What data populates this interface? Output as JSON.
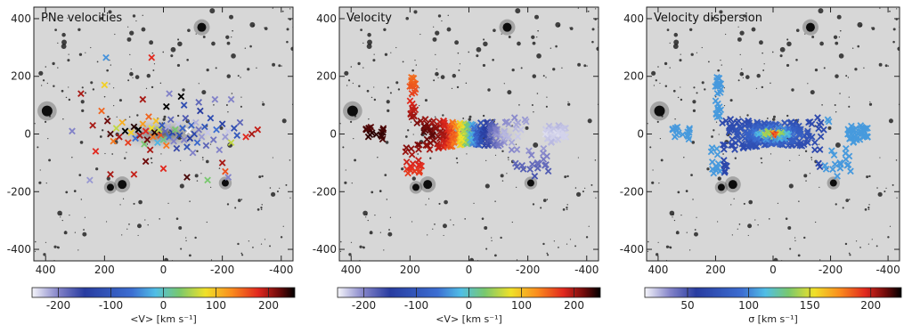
{
  "chart_data": [
    {
      "type": "scatter",
      "title": "PNe velocities",
      "xlim": [
        440,
        -440
      ],
      "ylim": [
        -440,
        440
      ],
      "xticks": [
        400,
        200,
        0,
        -200,
        -400
      ],
      "yticks": [
        400,
        200,
        0,
        -200,
        -400
      ],
      "colorbar": {
        "label": "<V> [km s⁻¹]",
        "range": [
          -250,
          250
        ],
        "ticks": [
          -200,
          -100,
          0,
          100,
          200
        ],
        "cmap": "velocity"
      },
      "points": [
        {
          "x": 310,
          "y": 10,
          "c": -200
        },
        {
          "x": 280,
          "y": 140,
          "c": 200
        },
        {
          "x": 240,
          "y": 30,
          "c": 200
        },
        {
          "x": 230,
          "y": -60,
          "c": 180
        },
        {
          "x": 250,
          "y": -160,
          "c": -210
        },
        {
          "x": 210,
          "y": 80,
          "c": 150
        },
        {
          "x": 200,
          "y": 170,
          "c": 90
        },
        {
          "x": 195,
          "y": 265,
          "c": -40
        },
        {
          "x": 190,
          "y": 45,
          "c": 220
        },
        {
          "x": 180,
          "y": 0,
          "c": 230
        },
        {
          "x": 170,
          "y": -25,
          "c": 140
        },
        {
          "x": 160,
          "y": 20,
          "c": 60
        },
        {
          "x": 150,
          "y": -10,
          "c": 200
        },
        {
          "x": 140,
          "y": 40,
          "c": 110
        },
        {
          "x": 130,
          "y": 10,
          "c": 250
        },
        {
          "x": 120,
          "y": -30,
          "c": 170
        },
        {
          "x": 110,
          "y": 5,
          "c": 90
        },
        {
          "x": 100,
          "y": 25,
          "c": 240
        },
        {
          "x": 95,
          "y": -15,
          "c": -60
        },
        {
          "x": 85,
          "y": 15,
          "c": 260
        },
        {
          "x": 80,
          "y": -5,
          "c": 200
        },
        {
          "x": 70,
          "y": 35,
          "c": 120
        },
        {
          "x": 65,
          "y": -35,
          "c": 30
        },
        {
          "x": 60,
          "y": 10,
          "c": 180
        },
        {
          "x": 55,
          "y": -20,
          "c": 220
        },
        {
          "x": 50,
          "y": 60,
          "c": 150
        },
        {
          "x": 45,
          "y": -55,
          "c": 200
        },
        {
          "x": 40,
          "y": 20,
          "c": 80
        },
        {
          "x": 35,
          "y": -10,
          "c": 140
        },
        {
          "x": 30,
          "y": 5,
          "c": 240
        },
        {
          "x": 25,
          "y": 45,
          "c": 100
        },
        {
          "x": 20,
          "y": -30,
          "c": -20
        },
        {
          "x": 15,
          "y": 15,
          "c": 60
        },
        {
          "x": 10,
          "y": -5,
          "c": 160
        },
        {
          "x": 5,
          "y": 30,
          "c": -100
        },
        {
          "x": 0,
          "y": -20,
          "c": 20
        },
        {
          "x": 40,
          "y": 265,
          "c": 180
        },
        {
          "x": -5,
          "y": 10,
          "c": -180
        },
        {
          "x": -10,
          "y": -40,
          "c": 140
        },
        {
          "x": -15,
          "y": 25,
          "c": -220
        },
        {
          "x": -20,
          "y": -10,
          "c": -60
        },
        {
          "x": -25,
          "y": 50,
          "c": -180
        },
        {
          "x": -30,
          "y": 5,
          "c": -140
        },
        {
          "x": -35,
          "y": -25,
          "c": -200
        },
        {
          "x": -40,
          "y": 15,
          "c": 30
        },
        {
          "x": -45,
          "y": -50,
          "c": -160
        },
        {
          "x": -50,
          "y": 35,
          "c": -230
        },
        {
          "x": -55,
          "y": -5,
          "c": -120
        },
        {
          "x": -60,
          "y": 130,
          "c": 260
        },
        {
          "x": -65,
          "y": 20,
          "c": -80
        },
        {
          "x": -70,
          "y": -20,
          "c": -200
        },
        {
          "x": -75,
          "y": 55,
          "c": -170
        },
        {
          "x": -80,
          "y": -45,
          "c": -110
        },
        {
          "x": -85,
          "y": 10,
          "c": -250
        },
        {
          "x": -90,
          "y": -15,
          "c": -150
        },
        {
          "x": -95,
          "y": 30,
          "c": -90
        },
        {
          "x": -100,
          "y": -65,
          "c": -200
        },
        {
          "x": -105,
          "y": 0,
          "c": -130
        },
        {
          "x": -110,
          "y": 40,
          "c": -220
        },
        {
          "x": -115,
          "y": -30,
          "c": -70
        },
        {
          "x": -120,
          "y": 15,
          "c": -190
        },
        {
          "x": -125,
          "y": 80,
          "c": -150
        },
        {
          "x": -130,
          "y": -10,
          "c": -210
        },
        {
          "x": -140,
          "y": 25,
          "c": -100
        },
        {
          "x": -145,
          "y": -40,
          "c": -180
        },
        {
          "x": -150,
          "y": 5,
          "c": -230
        },
        {
          "x": -160,
          "y": 55,
          "c": -120
        },
        {
          "x": -170,
          "y": -20,
          "c": -190
        },
        {
          "x": -175,
          "y": 120,
          "c": -200
        },
        {
          "x": -180,
          "y": 15,
          "c": -60
        },
        {
          "x": -190,
          "y": -55,
          "c": -200
        },
        {
          "x": -200,
          "y": 35,
          "c": -140
        },
        {
          "x": -210,
          "y": -10,
          "c": -210
        },
        {
          "x": -220,
          "y": 10,
          "c": -230
        },
        {
          "x": -230,
          "y": -30,
          "c": 60
        },
        {
          "x": -240,
          "y": 20,
          "c": -120
        },
        {
          "x": -250,
          "y": -5,
          "c": -100
        },
        {
          "x": -260,
          "y": 40,
          "c": -180
        },
        {
          "x": -280,
          "y": -10,
          "c": 180
        },
        {
          "x": -300,
          "y": 0,
          "c": 200
        },
        {
          "x": -320,
          "y": 15,
          "c": 190
        },
        {
          "x": -200,
          "y": -100,
          "c": 200
        },
        {
          "x": -210,
          "y": -130,
          "c": 160
        },
        {
          "x": -220,
          "y": -150,
          "c": -200
        },
        {
          "x": -150,
          "y": -160,
          "c": 30
        },
        {
          "x": -80,
          "y": -150,
          "c": 230
        },
        {
          "x": 0,
          "y": -120,
          "c": 180
        },
        {
          "x": 60,
          "y": -95,
          "c": 220
        },
        {
          "x": 100,
          "y": -140,
          "c": 190
        },
        {
          "x": 180,
          "y": -140,
          "c": 200
        },
        {
          "x": 70,
          "y": 120,
          "c": 200
        },
        {
          "x": -20,
          "y": 140,
          "c": -200
        },
        {
          "x": -70,
          "y": 100,
          "c": -120
        },
        {
          "x": -120,
          "y": 110,
          "c": -180
        },
        {
          "x": -10,
          "y": 95,
          "c": 250
        },
        {
          "x": -230,
          "y": 120,
          "c": -200
        }
      ]
    },
    {
      "type": "heatmap",
      "title": "Velocity",
      "xlim": [
        440,
        -440
      ],
      "ylim": [
        -440,
        440
      ],
      "xticks": [
        400,
        200,
        0,
        -200,
        -400
      ],
      "yticks": [
        400,
        200,
        0,
        -200,
        -400
      ],
      "colorbar": {
        "label": "<V> [km s⁻¹]",
        "range": [
          -250,
          250
        ],
        "ticks": [
          -200,
          -100,
          0,
          100,
          200
        ],
        "cmap": "velocity"
      }
    },
    {
      "type": "heatmap",
      "title": "Velocity dispersion",
      "xlim": [
        440,
        -440
      ],
      "ylim": [
        -440,
        440
      ],
      "xticks": [
        400,
        200,
        0,
        -200,
        -400
      ],
      "yticks": [
        400,
        200,
        0,
        -200,
        -400
      ],
      "colorbar": {
        "label": "σ [km s⁻¹]",
        "range": [
          15,
          225
        ],
        "ticks": [
          50,
          100,
          150,
          200
        ],
        "cmap": "velocity"
      }
    }
  ]
}
